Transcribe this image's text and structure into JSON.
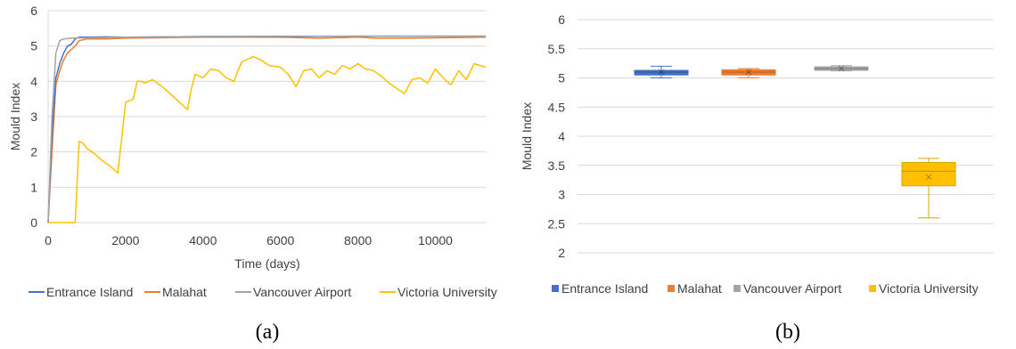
{
  "chart_data": [
    {
      "panel": "(a)",
      "type": "line",
      "title": "",
      "xlabel": "Time (days)",
      "ylabel": "Mould Index",
      "xlim": [
        0,
        11300
      ],
      "ylim": [
        0,
        6
      ],
      "x_ticks": [
        0,
        2000,
        4000,
        6000,
        8000,
        10000
      ],
      "y_ticks": [
        0,
        1,
        2,
        3,
        4,
        5,
        6
      ],
      "grid": "horizontal",
      "legend": "bottom",
      "series": [
        {
          "name": "Entrance Island",
          "color": "#4472C4",
          "x": [
            0,
            100,
            200,
            300,
            400,
            500,
            600,
            700,
            800,
            1000,
            1500,
            2000,
            4000,
            6000,
            8000,
            10000,
            11300
          ],
          "y": [
            0,
            2.5,
            4.1,
            4.5,
            4.8,
            5.0,
            5.05,
            5.2,
            5.25,
            5.25,
            5.26,
            5.25,
            5.27,
            5.27,
            5.28,
            5.28,
            5.28
          ]
        },
        {
          "name": "Malahat",
          "color": "#ED7D31",
          "x": [
            0,
            100,
            200,
            300,
            400,
            500,
            600,
            700,
            800,
            1000,
            1500,
            2000,
            4000,
            6000,
            7000,
            8000,
            8500,
            9000,
            10000,
            11300
          ],
          "y": [
            0,
            2.0,
            3.9,
            4.3,
            4.6,
            4.8,
            4.9,
            5.0,
            5.15,
            5.2,
            5.2,
            5.22,
            5.25,
            5.25,
            5.22,
            5.25,
            5.22,
            5.22,
            5.23,
            5.25
          ]
        },
        {
          "name": "Vancouver Airport",
          "color": "#A5A5A5",
          "x": [
            0,
            100,
            200,
            300,
            400,
            600,
            1000,
            2000,
            4000,
            6000,
            8000,
            10000,
            11300
          ],
          "y": [
            0,
            3.0,
            4.8,
            5.15,
            5.2,
            5.22,
            5.23,
            5.25,
            5.27,
            5.28,
            5.28,
            5.28,
            5.28
          ]
        },
        {
          "name": "Victoria University",
          "color": "#FFC000",
          "x": [
            0,
            700,
            750,
            800,
            900,
            1000,
            1200,
            1400,
            1600,
            1800,
            1900,
            2000,
            2200,
            2300,
            2400,
            2500,
            2700,
            3000,
            3300,
            3600,
            3700,
            3800,
            4000,
            4200,
            4400,
            4600,
            4800,
            4900,
            5000,
            5100,
            5300,
            5500,
            5700,
            6000,
            6200,
            6400,
            6600,
            6800,
            7000,
            7200,
            7400,
            7600,
            7800,
            8000,
            8200,
            8400,
            8600,
            8800,
            9000,
            9200,
            9400,
            9600,
            9800,
            10000,
            10200,
            10400,
            10600,
            10800,
            11000,
            11300
          ],
          "y": [
            0,
            0,
            1.2,
            2.3,
            2.25,
            2.1,
            1.95,
            1.75,
            1.6,
            1.4,
            2.4,
            3.4,
            3.5,
            4.0,
            4.0,
            3.95,
            4.05,
            3.8,
            3.5,
            3.2,
            3.8,
            4.2,
            4.1,
            4.35,
            4.3,
            4.1,
            4.0,
            4.3,
            4.55,
            4.6,
            4.7,
            4.6,
            4.45,
            4.4,
            4.2,
            3.85,
            4.3,
            4.35,
            4.1,
            4.3,
            4.2,
            4.45,
            4.35,
            4.5,
            4.35,
            4.3,
            4.15,
            3.95,
            3.8,
            3.65,
            4.05,
            4.1,
            3.95,
            4.35,
            4.1,
            3.9,
            4.3,
            4.05,
            4.5,
            4.4
          ]
        }
      ]
    },
    {
      "panel": "(b)",
      "type": "box",
      "title": "",
      "xlabel": "",
      "ylabel": "Mould Index",
      "ylim": [
        2,
        6
      ],
      "y_ticks": [
        "2",
        "2.5",
        "3",
        "3.5",
        "4",
        "4.5",
        "5",
        "5.5",
        "6"
      ],
      "grid": "horizontal",
      "legend": "bottom",
      "series": [
        {
          "name": "Entrance Island",
          "color": "#4472C4",
          "min": 5.0,
          "q1": 5.05,
          "median": 5.1,
          "q3": 5.13,
          "max": 5.2,
          "mean": 5.1
        },
        {
          "name": "Malahat",
          "color": "#ED7D31",
          "min": 5.0,
          "q1": 5.05,
          "median": 5.1,
          "q3": 5.14,
          "max": 5.16,
          "mean": 5.1
        },
        {
          "name": "Vancouver Airport",
          "color": "#A5A5A5",
          "min": 5.12,
          "q1": 5.13,
          "median": 5.16,
          "q3": 5.19,
          "max": 5.21,
          "mean": 5.16
        },
        {
          "name": "Victoria University",
          "color": "#FFC000",
          "min": 2.6,
          "q1": 3.15,
          "median": 3.4,
          "q3": 3.55,
          "max": 3.62,
          "mean": 3.3
        }
      ]
    }
  ]
}
